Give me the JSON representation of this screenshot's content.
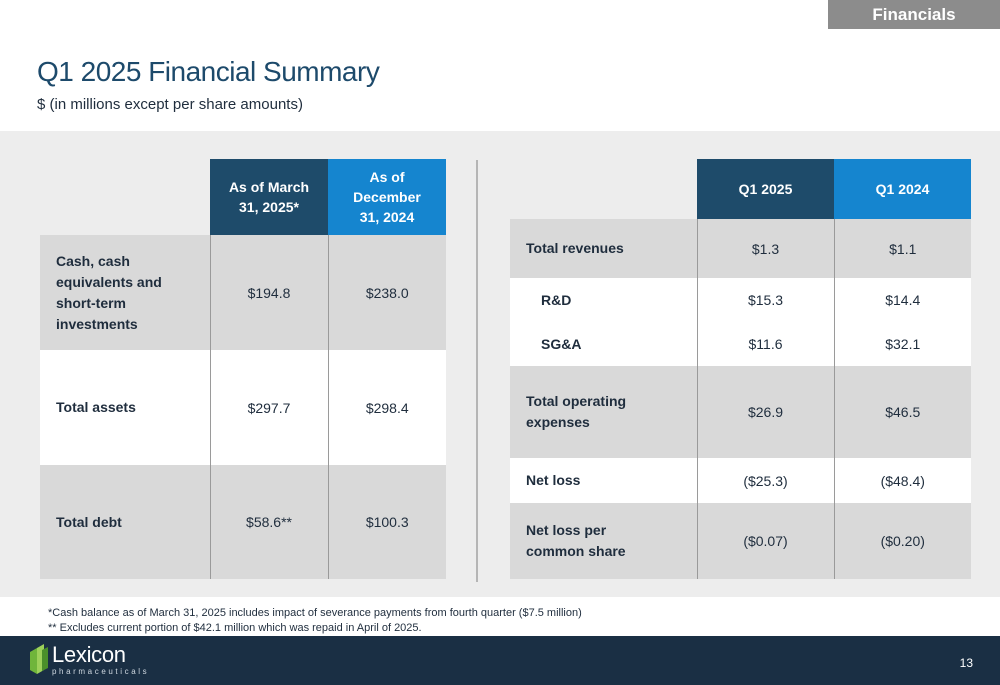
{
  "section_tag": "Financials",
  "title": "Q1 2025 Financial Summary",
  "subtitle": "$ (in millions except per share amounts)",
  "balance_table": {
    "headers": [
      "As of March 31, 2025*",
      "As of December 31, 2024"
    ],
    "rows": [
      {
        "label": "Cash, cash equivalents and short-term investments",
        "values": [
          "$194.8",
          "$238.0"
        ]
      },
      {
        "label": "Total assets",
        "values": [
          "$297.7",
          "$298.4"
        ]
      },
      {
        "label": "Total debt",
        "values": [
          "$58.6**",
          "$100.3"
        ]
      }
    ]
  },
  "income_table": {
    "headers": [
      "Q1 2025",
      "Q1 2024"
    ],
    "rows": [
      {
        "label": "Total revenues",
        "values": [
          "$1.3",
          "$1.1"
        ]
      },
      {
        "label": "R&D",
        "values": [
          "$15.3",
          "$14.4"
        ]
      },
      {
        "label": "SG&A",
        "values": [
          "$11.6",
          "$32.1"
        ]
      },
      {
        "label": "Total operating expenses",
        "values": [
          "$26.9",
          "$46.5"
        ]
      },
      {
        "label": "Net loss",
        "values": [
          "($25.3)",
          "($48.4)"
        ]
      },
      {
        "label": "Net loss per common share",
        "values": [
          "($0.07)",
          "($0.20)"
        ]
      }
    ]
  },
  "footnotes": [
    "*Cash balance as of March 31, 2025 includes impact of severance payments from fourth quarter ($7.5 million)",
    "** Excludes current portion of $42.1 million which was repaid in April of 2025."
  ],
  "logo": {
    "name": "Lexicon",
    "sub": "pharmaceuticals"
  },
  "page_number": "13",
  "colors": {
    "dark_header": "#1e4b6a",
    "bright_header": "#1585cf",
    "footer": "#1a2f44",
    "title": "#1d4a6b"
  }
}
